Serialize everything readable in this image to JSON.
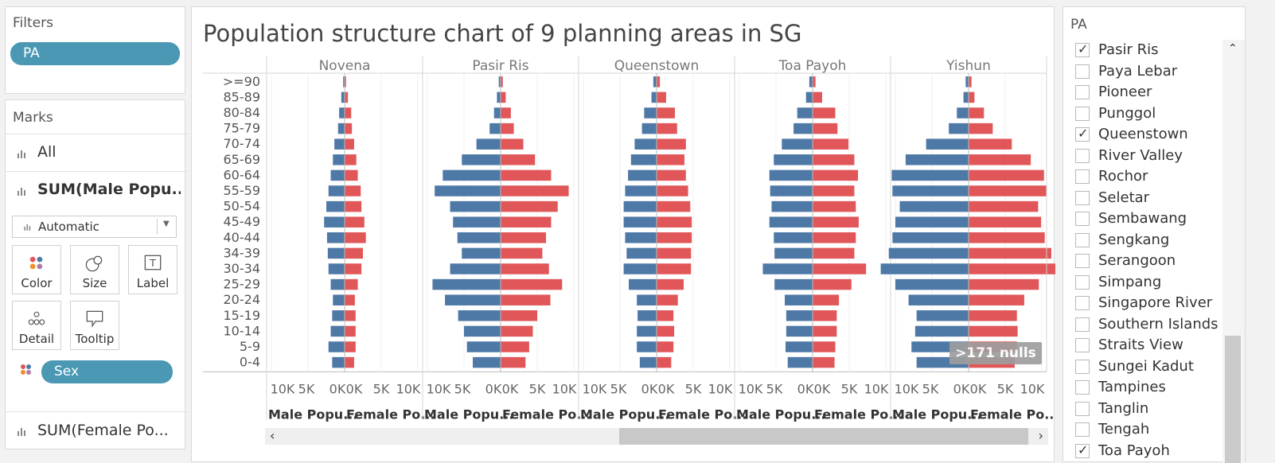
{
  "filters": {
    "title": "Filters",
    "pill": "PA"
  },
  "marks": {
    "title": "Marks",
    "rows": [
      "All",
      "SUM(Male Popu...",
      "SUM(Female Po..."
    ],
    "mark_type": "Automatic",
    "cards": [
      "Color",
      "Size",
      "Label",
      "Detail",
      "Tooltip"
    ],
    "sex_pill": "Sex"
  },
  "chart": {
    "title": "Population structure chart of 9 planning areas in SG",
    "null_badge": ">171 nulls",
    "male_color": "#4e79a7",
    "female_color": "#e15759"
  },
  "pa_filter": {
    "title": "PA",
    "items": [
      {
        "label": "Pasir Ris",
        "checked": true
      },
      {
        "label": "Paya Lebar",
        "checked": false
      },
      {
        "label": "Pioneer",
        "checked": false
      },
      {
        "label": "Punggol",
        "checked": false
      },
      {
        "label": "Queenstown",
        "checked": true
      },
      {
        "label": "River Valley",
        "checked": false
      },
      {
        "label": "Rochor",
        "checked": false
      },
      {
        "label": "Seletar",
        "checked": false
      },
      {
        "label": "Sembawang",
        "checked": false
      },
      {
        "label": "Sengkang",
        "checked": false
      },
      {
        "label": "Serangoon",
        "checked": false
      },
      {
        "label": "Simpang",
        "checked": false
      },
      {
        "label": "Singapore River",
        "checked": false
      },
      {
        "label": "Southern Islands",
        "checked": false
      },
      {
        "label": "Straits View",
        "checked": false
      },
      {
        "label": "Sungei Kadut",
        "checked": false
      },
      {
        "label": "Tampines",
        "checked": false
      },
      {
        "label": "Tanglin",
        "checked": false
      },
      {
        "label": "Tengah",
        "checked": false
      },
      {
        "label": "Toa Payoh",
        "checked": true
      }
    ]
  },
  "chart_data": {
    "type": "bar",
    "title": "Population structure chart of 9 planning areas in SG",
    "categories": [
      ">=90",
      "85-89",
      "80-84",
      "75-79",
      "70-74",
      "65-69",
      "60-64",
      "55-59",
      "50-54",
      "45-49",
      "40-44",
      "34-39",
      "30-34",
      "25-29",
      "20-24",
      "15-19",
      "10-14",
      "5-9",
      "0-4"
    ],
    "tick_labels": [
      "10K",
      "5K",
      "0K"
    ],
    "tick_labels_female": [
      "0K",
      "5K",
      "10K"
    ],
    "axis_titles": [
      "Male Popu...",
      "Female Po..."
    ],
    "xlim": [
      0,
      10000
    ],
    "panels": [
      {
        "name": "Novena",
        "male": [
          200,
          450,
          750,
          900,
          1400,
          1600,
          1900,
          2200,
          2500,
          2800,
          2400,
          2300,
          2200,
          1900,
          1600,
          1700,
          1900,
          2200,
          1700
        ],
        "female": [
          200,
          450,
          900,
          1000,
          1300,
          1600,
          1800,
          2200,
          2300,
          2700,
          2900,
          2500,
          2300,
          1800,
          1400,
          1500,
          1500,
          1500,
          1300
        ]
      },
      {
        "name": "Pasir Ris",
        "male": [
          250,
          500,
          900,
          1500,
          3300,
          5300,
          7900,
          9000,
          6900,
          6500,
          5900,
          5300,
          6900,
          9300,
          7600,
          5800,
          5000,
          4600,
          3800
        ],
        "female": [
          300,
          700,
          1400,
          1800,
          3100,
          4700,
          6900,
          9300,
          7800,
          6900,
          6200,
          5700,
          6600,
          8400,
          6800,
          5000,
          4400,
          3900,
          3400
        ]
      },
      {
        "name": "Queenstown",
        "male": [
          450,
          700,
          1700,
          2000,
          3000,
          3500,
          3900,
          4300,
          4500,
          4500,
          4300,
          4100,
          4500,
          3800,
          2700,
          2600,
          2700,
          2700,
          2300
        ],
        "female": [
          450,
          1300,
          2500,
          2800,
          4000,
          3800,
          4000,
          4300,
          4600,
          4800,
          4800,
          4700,
          4700,
          3700,
          2900,
          2300,
          2400,
          2300,
          2000
        ]
      },
      {
        "name": "Toa Payoh",
        "male": [
          450,
          900,
          2100,
          2600,
          4200,
          5300,
          5900,
          5800,
          5600,
          5900,
          5300,
          5200,
          6800,
          5200,
          3800,
          3600,
          3600,
          3700,
          3400
        ],
        "female": [
          400,
          1300,
          3100,
          3400,
          4900,
          5700,
          6200,
          5700,
          5900,
          6300,
          5900,
          5700,
          7300,
          5300,
          3600,
          3300,
          3300,
          3100,
          3000
        ]
      },
      {
        "name": "Yishun",
        "male": [
          400,
          700,
          1600,
          2700,
          5800,
          8600,
          10500,
          10400,
          9400,
          10000,
          10400,
          10900,
          12000,
          10000,
          8200,
          7100,
          7300,
          7800,
          7100
        ],
        "female": [
          400,
          800,
          2100,
          3300,
          5900,
          8500,
          10300,
          10700,
          9500,
          9900,
          10400,
          11300,
          12000,
          9600,
          7600,
          6600,
          6700,
          6600,
          6300
        ]
      }
    ]
  }
}
